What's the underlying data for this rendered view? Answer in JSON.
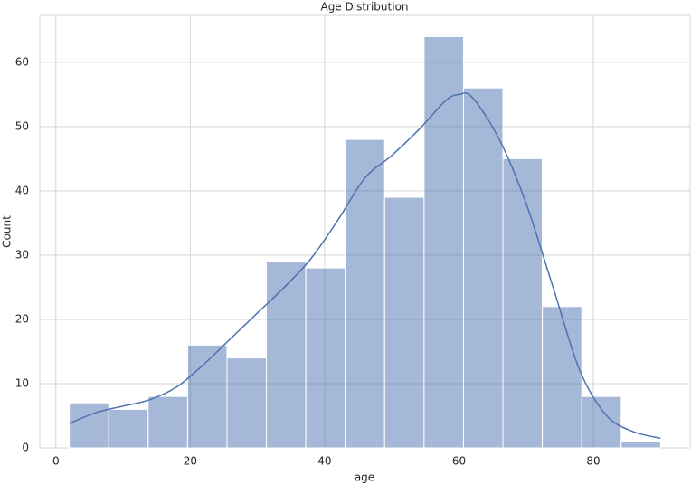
{
  "chart_data": {
    "type": "histogram",
    "title": "Age Distribution",
    "x_label": "age",
    "y_label": "Count",
    "bins": [
      2,
      7.87,
      13.73,
      19.6,
      25.47,
      31.33,
      37.2,
      43.07,
      48.93,
      54.8,
      60.67,
      66.53,
      72.4,
      78.27,
      84.13,
      90
    ],
    "values": [
      7,
      6,
      8,
      16,
      14,
      29,
      28,
      48,
      39,
      64,
      56,
      45,
      22,
      8,
      1
    ],
    "color": "#4c72b0",
    "kde": {
      "x": [
        2,
        6,
        10,
        14,
        18,
        22,
        26,
        30,
        34,
        38,
        42,
        46,
        50,
        54,
        58,
        60,
        62,
        66,
        70,
        74,
        78,
        82,
        86,
        90
      ],
      "values": [
        3.8,
        5.5,
        6.5,
        7.5,
        9.5,
        13,
        17,
        21,
        25,
        29.5,
        35.5,
        42,
        45.5,
        49.5,
        54,
        55,
        54.5,
        48,
        38,
        25,
        12,
        5,
        2.5,
        1.5
      ]
    },
    "xlim": [
      -2.4,
      94.4
    ],
    "ylim": [
      0,
      67.3
    ],
    "xticks": [
      0,
      20,
      40,
      60,
      80
    ],
    "yticks": [
      0,
      10,
      20,
      30,
      40,
      50,
      60
    ],
    "grid": true
  }
}
